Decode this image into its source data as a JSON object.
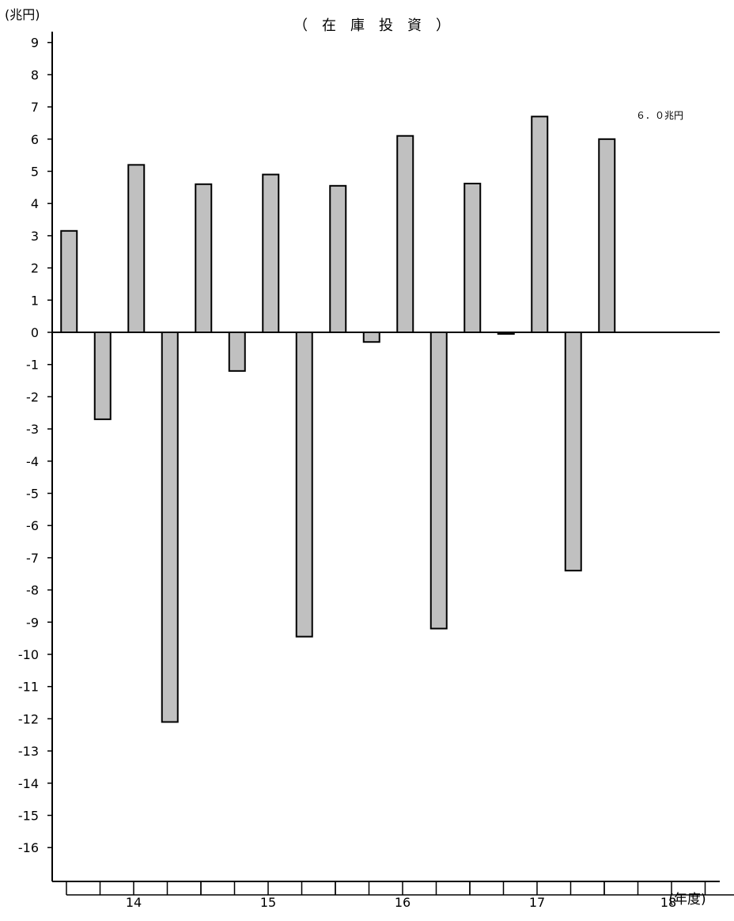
{
  "chart_data": {
    "type": "bar",
    "title": "（　在　庫　投　資　）",
    "ylabel": "(兆円)",
    "xlabel": "(年度)",
    "ylim": [
      -17,
      9.5
    ],
    "yticks": [
      9,
      8,
      7,
      6,
      5,
      4,
      3,
      2,
      1,
      0,
      -1,
      -2,
      -3,
      -4,
      -5,
      -6,
      -7,
      -8,
      -9,
      -10,
      -11,
      -12,
      -13,
      -14,
      -15,
      -16
    ],
    "year_labels": [
      "14",
      "15",
      "16",
      "17",
      "18"
    ],
    "quarters_per_year": 4,
    "values": [
      3.15,
      -2.7,
      5.2,
      -12.1,
      4.6,
      -1.2,
      4.9,
      -9.45,
      4.55,
      -0.3,
      6.1,
      -9.2,
      4.62,
      -0.05,
      6.7,
      -7.4,
      6.0
    ],
    "annotation": "６．０兆円",
    "colors": {
      "bar_fill": "#c0c0c0",
      "bar_stroke": "#000000"
    }
  }
}
